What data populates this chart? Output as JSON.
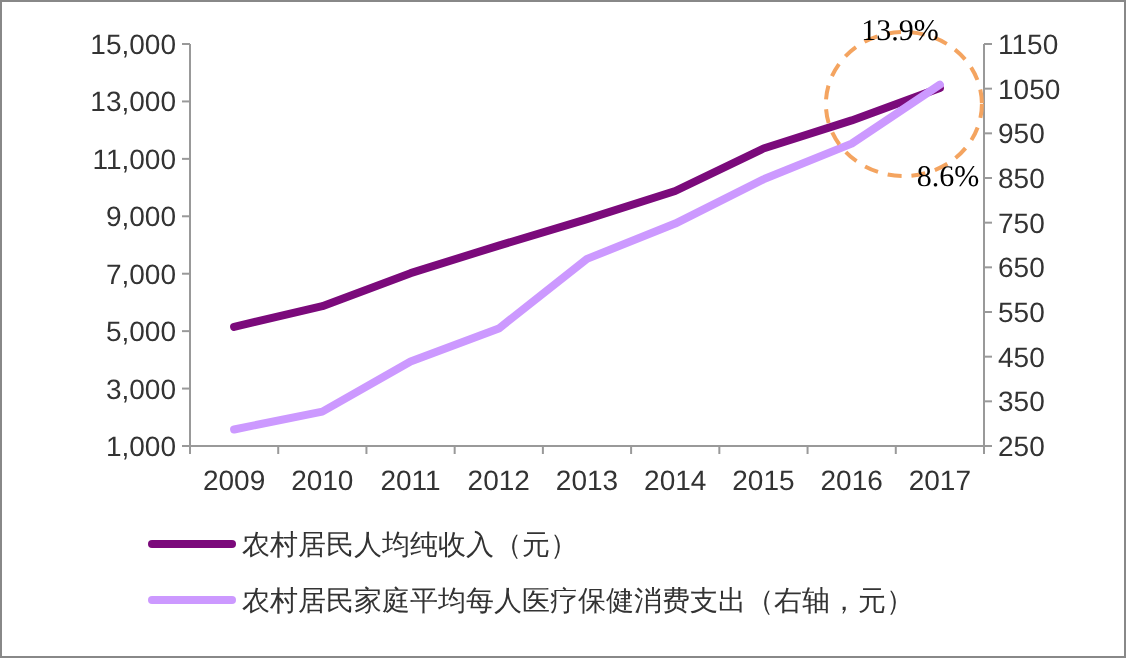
{
  "chart_data": {
    "type": "line",
    "categories": [
      "2009",
      "2010",
      "2011",
      "2012",
      "2013",
      "2014",
      "2015",
      "2016",
      "2017"
    ],
    "series": [
      {
        "name": "农村居民人均纯收入（元）",
        "color": "#7b0a7b",
        "values": [
          5150,
          5870,
          7020,
          7980,
          8900,
          9880,
          11360,
          12340,
          13470
        ]
      },
      {
        "name": "农村居民家庭平均每人医疗保健消费支出（右轴，元）",
        "color": "#cc99ff",
        "axis": "y2",
        "values": [
          287,
          327,
          439,
          513,
          669,
          748,
          847,
          927,
          1059
        ]
      }
    ],
    "ylim": [
      1000,
      15000
    ],
    "yticks": [
      {
        "value": 1000,
        "label": "1,000"
      },
      {
        "value": 3000,
        "label": "3,000"
      },
      {
        "value": 5000,
        "label": "5,000"
      },
      {
        "value": 7000,
        "label": "7,000"
      },
      {
        "value": 9000,
        "label": "9,000"
      },
      {
        "value": 11000,
        "label": "11,000"
      },
      {
        "value": 13000,
        "label": "13,000"
      },
      {
        "value": 15000,
        "label": "15,000"
      }
    ],
    "y2lim": [
      250,
      1150
    ],
    "y2ticks": [
      250,
      350,
      450,
      550,
      650,
      750,
      850,
      950,
      1050,
      1150
    ],
    "annotations": [
      "13.9%",
      "8.6%"
    ],
    "legend": "bottom",
    "grid": false
  }
}
